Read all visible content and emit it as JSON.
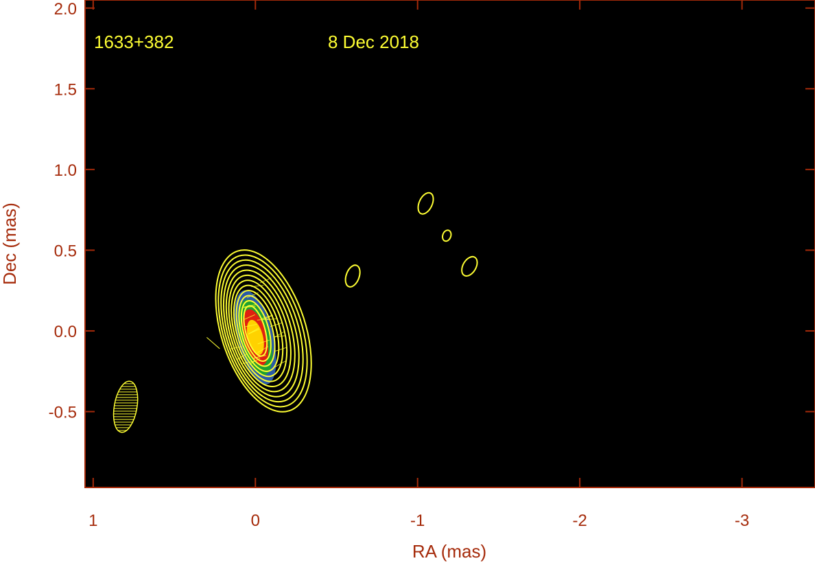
{
  "chart_data": {
    "type": "contour",
    "source_label": "1633+382",
    "date_label": "8 Dec 2018",
    "xlabel": "RA (mas)",
    "ylabel": "Dec (mas)",
    "x_axis_reversed": true,
    "xlim": [
      1.05,
      -3.45
    ],
    "ylim": [
      -0.97,
      2.05
    ],
    "x_ticks": [
      {
        "value": 1,
        "label": "1"
      },
      {
        "value": 0,
        "label": "0"
      },
      {
        "value": -1,
        "label": "-1"
      },
      {
        "value": -2,
        "label": "-2"
      },
      {
        "value": -3,
        "label": "-3"
      }
    ],
    "y_ticks": [
      {
        "value": 2.0,
        "label": "2.0"
      },
      {
        "value": 1.5,
        "label": "1.5"
      },
      {
        "value": 1.0,
        "label": "1.0"
      },
      {
        "value": 0.5,
        "label": "0.5"
      },
      {
        "value": 0.0,
        "label": "0.0"
      },
      {
        "value": -0.5,
        "label": "-0.5"
      }
    ],
    "core_center": {
      "x": 0.0,
      "y": 0.0
    },
    "nested_contours": {
      "count": 12,
      "outer": {
        "x": -0.05,
        "y": 0.0,
        "rx": 0.26,
        "ry": 0.52,
        "angle_deg": -18
      },
      "inner": {
        "x": 0.0,
        "y": 0.0,
        "rx": 0.06,
        "ry": 0.16,
        "angle_deg": -15
      }
    },
    "isolated_contours": [
      {
        "x": -0.6,
        "y": 0.34,
        "rx": 0.04,
        "ry": 0.07,
        "angle_deg": 20
      },
      {
        "x": -1.05,
        "y": 0.79,
        "rx": 0.04,
        "ry": 0.07,
        "angle_deg": 25
      },
      {
        "x": -1.18,
        "y": 0.59,
        "rx": 0.025,
        "ry": 0.035,
        "angle_deg": 20
      },
      {
        "x": -1.32,
        "y": 0.4,
        "rx": 0.04,
        "ry": 0.065,
        "angle_deg": 30
      }
    ],
    "beam": {
      "x": 0.8,
      "y": -0.47,
      "rx": 0.07,
      "ry": 0.16,
      "angle_deg": 10
    },
    "colors": {
      "background": "#000000",
      "frame": "#a52a0a",
      "contour": "#ffff33",
      "core_outer": "#2a5aa8",
      "core_mid": "#1fa030",
      "core_inner": "#e02010",
      "core_peak": "#ffd200"
    }
  }
}
